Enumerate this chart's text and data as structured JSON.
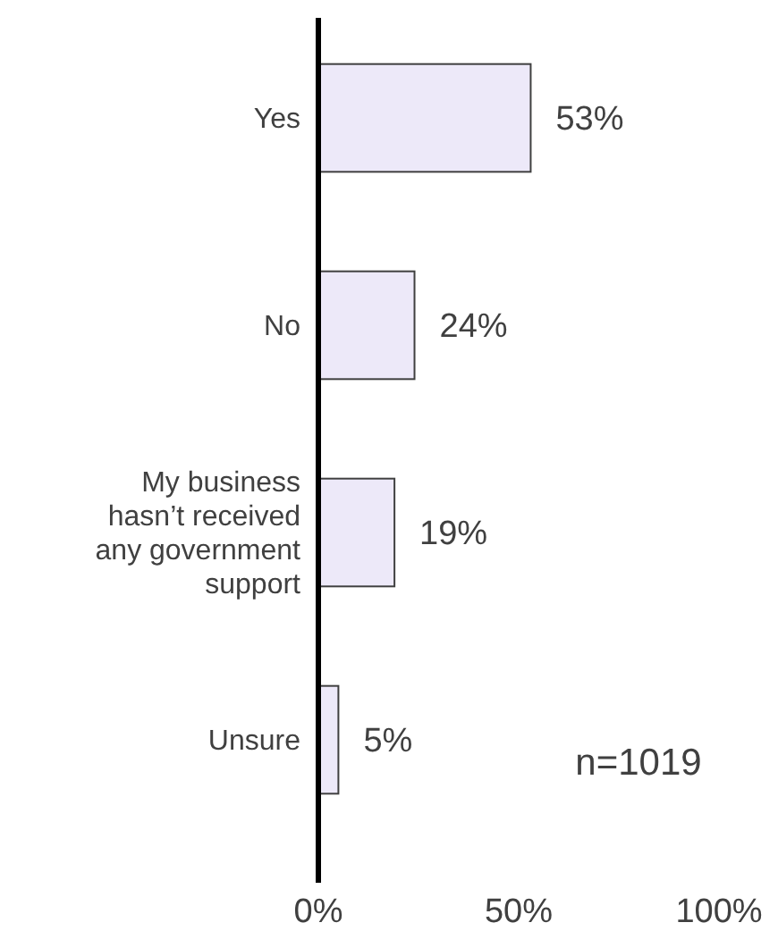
{
  "chart_data": {
    "type": "bar",
    "orientation": "horizontal",
    "categories": [
      "Yes",
      "No",
      "My business hasn’t received any government support",
      "Unsure"
    ],
    "values": [
      53,
      24,
      19,
      5
    ],
    "value_labels": [
      "53%",
      "24%",
      "19%",
      "5%"
    ],
    "color": "#ede9f9",
    "xlim": [
      0,
      100
    ],
    "xticks": [
      {
        "value": 0,
        "label": "0%"
      },
      {
        "value": 50,
        "label": "50%"
      },
      {
        "value": 100,
        "label": "100%"
      }
    ],
    "annotations": [
      "n=1019"
    ],
    "grid": false
  }
}
